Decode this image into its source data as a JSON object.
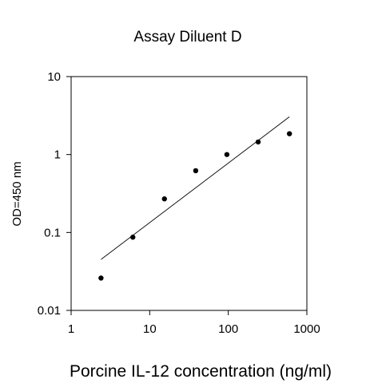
{
  "chart_data": {
    "type": "scatter",
    "title": "Assay Diluent D",
    "xlabel": "Porcine IL-12 concentration (ng/ml)",
    "ylabel": "OD=450 nm",
    "x_scale": "log",
    "y_scale": "log",
    "xlim": [
      1,
      1000
    ],
    "ylim": [
      0.01,
      10
    ],
    "x_ticks": [
      1,
      10,
      100,
      1000
    ],
    "x_tick_labels": [
      "1",
      "10",
      "100",
      "1000"
    ],
    "y_ticks": [
      0.01,
      0.1,
      1,
      10
    ],
    "y_tick_labels": [
      "0.01",
      "0.1",
      "1",
      "10"
    ],
    "grid": false,
    "legend": "none",
    "series": [
      {
        "color": "#000000",
        "x": [
          2.4,
          6.1,
          15.4,
          38.5,
          96,
          240,
          600
        ],
        "y": [
          0.026,
          0.087,
          0.27,
          0.62,
          1.0,
          1.45,
          1.85
        ]
      }
    ],
    "fit_line": {
      "color": "#000000",
      "x": [
        2.4,
        600
      ],
      "y": [
        0.045,
        3.05
      ]
    }
  }
}
